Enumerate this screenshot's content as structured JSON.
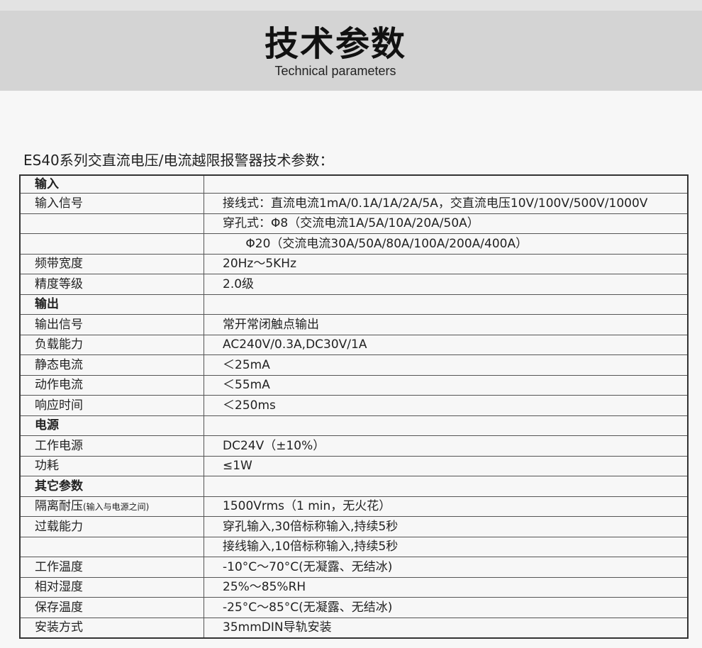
{
  "header": {
    "title": "技术参数",
    "subtitle": "Technical parameters"
  },
  "caption": "ES40系列交直流电压/电流越限报警器技术参数：",
  "rows": [
    {
      "label": "输入",
      "value": "",
      "section": true
    },
    {
      "label": "输入信号",
      "value": "接线式：直流电流1mA/0.1A/1A/2A/5A，交直流电压10V/100V/500V/1000V"
    },
    {
      "label": "",
      "value": "穿孔式：Φ8（交流电流1A/5A/10A/20A/50A）"
    },
    {
      "label": "",
      "value": "      Φ20（交流电流30A/50A/80A/100A/200A/400A）"
    },
    {
      "label": "频带宽度",
      "value": "20Hz～5KHz"
    },
    {
      "label": "精度等级",
      "value": "2.0级"
    },
    {
      "label": "输出",
      "value": "",
      "section": true
    },
    {
      "label": "输出信号",
      "value": "常开常闭触点输出"
    },
    {
      "label": "负载能力",
      "value": "AC240V/0.3A,DC30V/1A"
    },
    {
      "label": "静态电流",
      "value": "＜25mA"
    },
    {
      "label": "动作电流",
      "value": "＜55mA"
    },
    {
      "label": "响应时间",
      "value": "＜250ms"
    },
    {
      "label": "电源",
      "value": "",
      "section": true
    },
    {
      "label": "工作电源",
      "value": "DC24V（±10%）"
    },
    {
      "label": "功耗",
      "value": "≤1W"
    },
    {
      "label": "其它参数",
      "value": "",
      "section": true
    },
    {
      "label": "隔离耐压",
      "label_note": "(输入与电源之间)",
      "value": "1500Vrms（1 min，无火花）"
    },
    {
      "label": "过载能力",
      "value": "穿孔输入,30倍标称输入,持续5秒"
    },
    {
      "label": "",
      "value": "接线输入,10倍标称输入,持续5秒"
    },
    {
      "label": "工作温度",
      "value": "-10°C～70°C(无凝露、无结冰)"
    },
    {
      "label": "相对湿度",
      "value": "25%～85%RH"
    },
    {
      "label": "保存温度",
      "value": "-25°C～85°C(无凝露、无结冰)"
    },
    {
      "label": "安装方式",
      "value": "35mmDIN导轨安装"
    }
  ]
}
